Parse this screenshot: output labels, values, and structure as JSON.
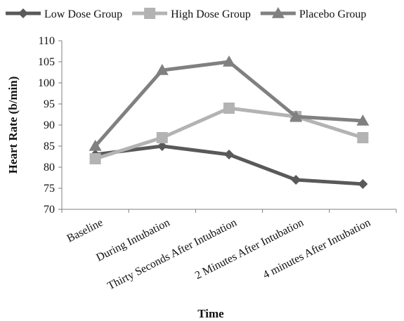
{
  "chart_data": {
    "type": "line",
    "title": "",
    "xlabel": "Time",
    "ylabel": "Heart Rate (b/min)",
    "categories": [
      "Baseline",
      "During Intubation",
      "Thirty Seconds After Intubation",
      "2 Minutes After Intubation",
      "4 minutes After Intubation"
    ],
    "ylim": [
      70,
      110
    ],
    "yticks": [
      70,
      75,
      80,
      85,
      90,
      95,
      100,
      105,
      110
    ],
    "grid": false,
    "legend_position": "top",
    "series": [
      {
        "name": "Low Dose Group",
        "values": [
          83,
          85,
          83,
          77,
          76
        ],
        "color": "#595959",
        "marker": "diamond"
      },
      {
        "name": "High Dose Group",
        "values": [
          82,
          87,
          94,
          92,
          87
        ],
        "color": "#b3b3b3",
        "marker": "square"
      },
      {
        "name": "Placebo Group",
        "values": [
          85,
          103,
          105,
          92,
          91
        ],
        "color": "#808080",
        "marker": "triangle"
      }
    ]
  }
}
